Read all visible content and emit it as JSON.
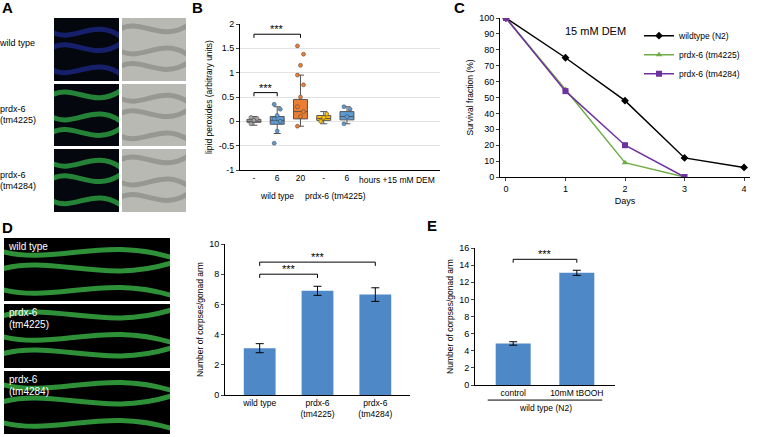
{
  "micrographs": [
    {
      "panel_label": "A",
      "rows": [
        "wild type",
        "prdx-6 (tm4225)",
        "prdx-6 (tm4284)"
      ]
    },
    {
      "panel_label": "D",
      "rows": [
        "wild type",
        "prdx-6 (tm4225)",
        "prdx-6 (tm4284)"
      ]
    }
  ],
  "chart_data": [
    {
      "panel_label": "B",
      "type": "box",
      "ylabel": "lipid peroxides (arbitrary units)",
      "xlabel": "hours +15 mM DEM",
      "categories": [
        "-",
        "6",
        "20",
        "-",
        "6"
      ],
      "groups": [
        {
          "label": "wild type",
          "members": [
            0,
            1,
            2
          ]
        },
        {
          "label": "prdx-6 (tm4225)",
          "members": [
            3,
            4
          ]
        }
      ],
      "colors": [
        "#a6a6a6",
        "#5b9bd5",
        "#ed7d31",
        "#ffc000",
        "#5b9bd5"
      ],
      "lowerfence": [
        -0.08,
        -0.25,
        -0.1,
        -0.05,
        -0.05
      ],
      "q1": [
        -0.02,
        -0.06,
        0.05,
        0.02,
        0.03
      ],
      "median": [
        0.0,
        0.02,
        0.2,
        0.06,
        0.1
      ],
      "q3": [
        0.04,
        0.1,
        0.45,
        0.12,
        0.2
      ],
      "upperfence": [
        0.1,
        0.3,
        0.95,
        0.2,
        0.3
      ],
      "points": [
        [
          -0.05,
          0.02,
          0.06,
          0.08
        ],
        [
          -0.45,
          -0.2,
          0.0,
          0.05,
          0.12,
          0.25,
          0.35
        ],
        [
          -0.1,
          0.1,
          0.2,
          0.3,
          0.5,
          0.75,
          0.95,
          1.15,
          1.38,
          1.55
        ],
        [
          0.0,
          0.08,
          0.15
        ],
        [
          -0.05,
          0.1,
          0.25,
          0.3
        ]
      ],
      "ylim": [
        -1,
        2
      ],
      "yticks": [
        -1,
        -0.5,
        0,
        0.5,
        1,
        1.5,
        2
      ],
      "grid": true,
      "significance": [
        {
          "from": 0,
          "to": 2,
          "label": "***"
        },
        {
          "from": 0,
          "to": 1,
          "label": "***"
        }
      ]
    },
    {
      "panel_label": "C",
      "type": "line",
      "title": "15 mM DEM",
      "xlabel": "Days",
      "ylabel": "Survival fraction (%)",
      "x": [
        0,
        1,
        2,
        3,
        4
      ],
      "series": [
        {
          "name": "wildtype (N2)",
          "color": "#000000",
          "marker": "diamond",
          "line_style": "solid",
          "values": [
            100,
            75,
            48,
            12,
            6
          ]
        },
        {
          "name": "prdx-6 (tm4225)",
          "color": "#70ad47",
          "marker": "triangle-up",
          "line_style": "solid",
          "values": [
            100,
            55,
            9,
            0,
            null
          ]
        },
        {
          "name": "prdx-6 (tm4284)",
          "color": "#7030a0",
          "marker": "square",
          "line_style": "solid",
          "values": [
            100,
            54,
            20,
            0,
            null
          ]
        }
      ],
      "xlim": [
        -0.1,
        4.1
      ],
      "xticks": [
        0,
        1,
        2,
        3,
        4
      ],
      "ylim": [
        0,
        100
      ],
      "yticks": [
        0,
        10,
        20,
        30,
        40,
        50,
        60,
        70,
        80,
        90,
        100
      ],
      "grid": false,
      "legend": "top-right"
    },
    {
      "type": "bar",
      "ylabel": "Number of corpses/gonad arm",
      "categories": [
        "wild type",
        "prdx-6 (tm4225)",
        "prdx-6 (tm4284)"
      ],
      "values": [
        3.1,
        6.9,
        6.65
      ],
      "errors": [
        0.3,
        0.3,
        0.45
      ],
      "color": "#4f88c6",
      "ylim": [
        0,
        10
      ],
      "yticks": [
        0,
        2,
        4,
        6,
        8,
        10
      ],
      "grid": false,
      "significance": [
        {
          "from": 0,
          "to": 2,
          "label": "***"
        },
        {
          "from": 0,
          "to": 1,
          "label": "***"
        }
      ]
    },
    {
      "panel_label": "E",
      "type": "bar",
      "ylabel": "Number of corpses/gonad arm",
      "categories": [
        "control",
        "10mM tBOOH"
      ],
      "group_label": "wild type (N2)",
      "values": [
        4.85,
        13.1
      ],
      "errors": [
        0.2,
        0.3
      ],
      "color": "#4f88c6",
      "ylim": [
        0,
        16
      ],
      "yticks": [
        0,
        2,
        4,
        6,
        8,
        10,
        12,
        14,
        16
      ],
      "grid": false,
      "significance": [
        {
          "from": 0,
          "to": 1,
          "label": "***"
        }
      ]
    }
  ]
}
